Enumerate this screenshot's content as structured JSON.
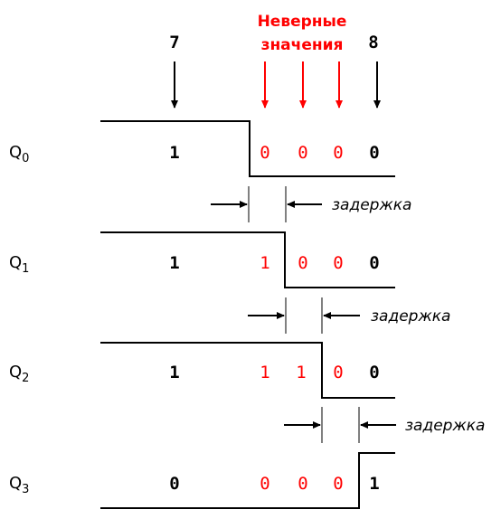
{
  "colors": {
    "black": "#000000",
    "red": "#ff0000"
  },
  "header": {
    "count_before": "7",
    "count_after": "8",
    "invalid_line1": "Неверные",
    "invalid_line2": "значения"
  },
  "delay_label": "задержка",
  "rows": [
    {
      "label": "Q",
      "sub": "0",
      "values": [
        "1",
        "0",
        "0",
        "0",
        "0"
      ]
    },
    {
      "label": "Q",
      "sub": "1",
      "values": [
        "1",
        "1",
        "0",
        "0",
        "0"
      ]
    },
    {
      "label": "Q",
      "sub": "2",
      "values": [
        "1",
        "1",
        "1",
        "0",
        "0"
      ]
    },
    {
      "label": "Q",
      "sub": "3",
      "values": [
        "0",
        "0",
        "0",
        "0",
        "1"
      ]
    }
  ]
}
